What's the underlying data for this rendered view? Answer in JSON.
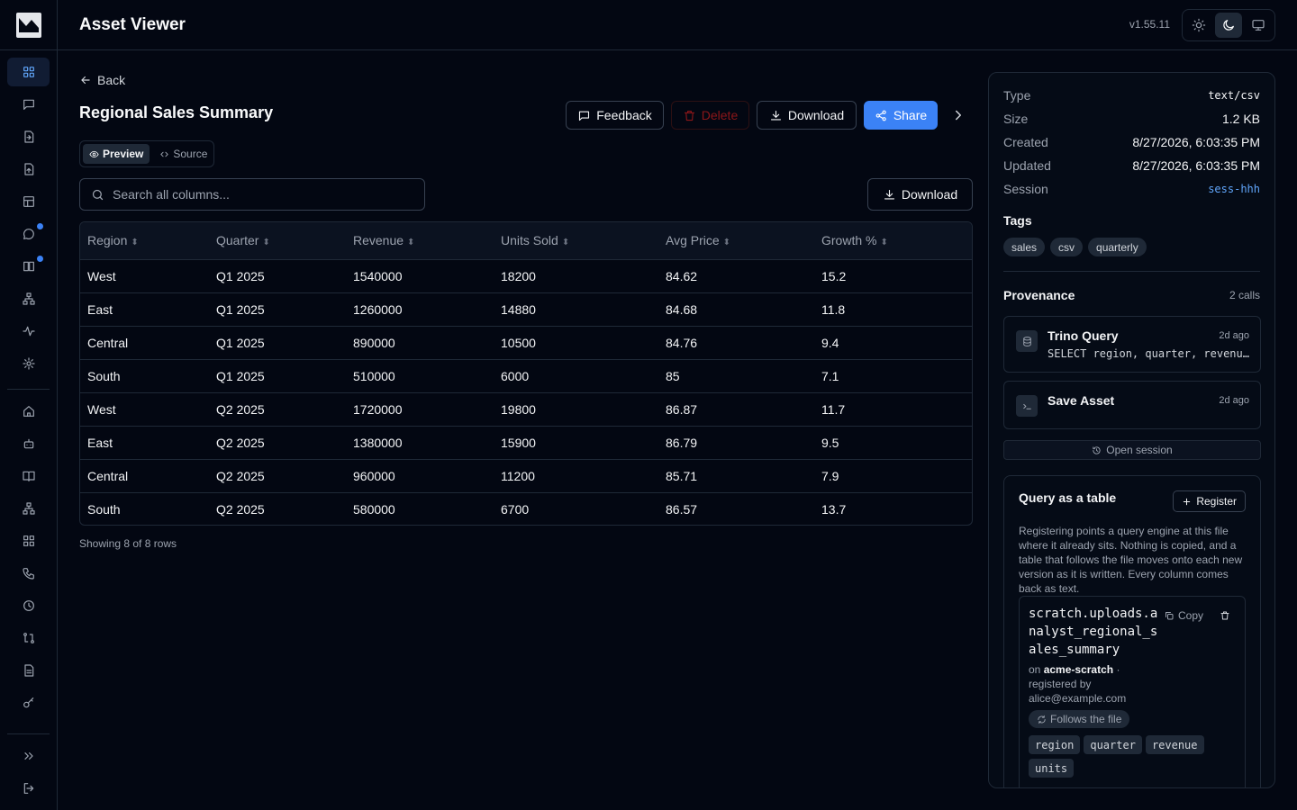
{
  "app": {
    "title": "Asset Viewer",
    "version": "v1.55.11"
  },
  "theme": {
    "options": [
      "light-icon",
      "dark-icon",
      "system-icon"
    ],
    "active": "dark"
  },
  "sidebar": {
    "items": [
      {
        "name": "grid-icon",
        "active": true,
        "dot": false
      },
      {
        "name": "chat-icon",
        "active": false,
        "dot": false
      },
      {
        "name": "file-import-icon",
        "active": false,
        "dot": false
      },
      {
        "name": "file-upload-icon",
        "active": false,
        "dot": false
      },
      {
        "name": "table-icon",
        "active": false,
        "dot": false
      },
      {
        "name": "message-icon",
        "active": false,
        "dot": true
      },
      {
        "name": "book-icon",
        "active": false,
        "dot": true
      },
      {
        "name": "network-icon",
        "active": false,
        "dot": false
      },
      {
        "name": "activity-icon",
        "active": false,
        "dot": false
      },
      {
        "name": "settings-icon",
        "active": false,
        "dot": false
      },
      {
        "name": "home-icon",
        "active": false,
        "dot": false
      },
      {
        "name": "bot-icon",
        "active": false,
        "dot": false
      },
      {
        "name": "book-open-icon",
        "active": false,
        "dot": false
      },
      {
        "name": "hierarchy-icon",
        "active": false,
        "dot": false
      },
      {
        "name": "apps-icon",
        "active": false,
        "dot": false
      },
      {
        "name": "phone-icon",
        "active": false,
        "dot": false
      },
      {
        "name": "clock-icon",
        "active": false,
        "dot": false
      },
      {
        "name": "compare-icon",
        "active": false,
        "dot": false
      },
      {
        "name": "document-icon",
        "active": false,
        "dot": false
      },
      {
        "name": "key-icon",
        "active": false,
        "dot": false
      }
    ],
    "expand_icon": "chevrons-right-icon",
    "logout_icon": "logout-icon"
  },
  "page": {
    "back_label": "Back",
    "title": "Regional Sales Summary",
    "actions": {
      "feedback": "Feedback",
      "delete": "Delete",
      "download": "Download",
      "share": "Share"
    },
    "tabs": {
      "preview": "Preview",
      "source": "Source"
    },
    "search": {
      "placeholder": "Search all columns..."
    },
    "table_download": "Download",
    "row_count": "Showing 8 of 8 rows"
  },
  "table": {
    "columns": [
      "Region",
      "Quarter",
      "Revenue",
      "Units Sold",
      "Avg Price",
      "Growth %"
    ],
    "rows": [
      [
        "West",
        "Q1 2025",
        "1540000",
        "18200",
        "84.62",
        "15.2"
      ],
      [
        "East",
        "Q1 2025",
        "1260000",
        "14880",
        "84.68",
        "11.8"
      ],
      [
        "Central",
        "Q1 2025",
        "890000",
        "10500",
        "84.76",
        "9.4"
      ],
      [
        "South",
        "Q1 2025",
        "510000",
        "6000",
        "85",
        "7.1"
      ],
      [
        "West",
        "Q2 2025",
        "1720000",
        "19800",
        "86.87",
        "11.7"
      ],
      [
        "East",
        "Q2 2025",
        "1380000",
        "15900",
        "86.79",
        "9.5"
      ],
      [
        "Central",
        "Q2 2025",
        "960000",
        "11200",
        "85.71",
        "7.9"
      ],
      [
        "South",
        "Q2 2025",
        "580000",
        "6700",
        "86.57",
        "13.7"
      ]
    ]
  },
  "panel": {
    "meta": [
      {
        "key": "Type",
        "value": "text/csv"
      },
      {
        "key": "Size",
        "value": "1.2 KB"
      },
      {
        "key": "Created",
        "value": "8/27/2026, 6:03:35 PM"
      },
      {
        "key": "Updated",
        "value": "8/27/2026, 6:03:35 PM"
      },
      {
        "key": "Session",
        "value": "sess-hhh"
      }
    ],
    "tags_title": "Tags",
    "tags": [
      "sales",
      "csv",
      "quarterly"
    ],
    "provenance_title": "Provenance",
    "provenance_count": "2 calls",
    "provenance": [
      {
        "name": "Trino Query",
        "time": "2d ago",
        "detail": "SELECT region, quarter, revenue, units_sold FROM sales"
      },
      {
        "name": "Save Asset",
        "time": "2d ago",
        "detail": ""
      }
    ],
    "open_session": "Open session",
    "query": {
      "title": "Query as a table",
      "register": "Register",
      "description": "Registering points a query engine at this file where it already sits. Nothing is copied, and a table that follows the file moves onto each new version as it is written. Every column comes back as text.",
      "table_name": "scratch.uploads.analyst_regional_sales_summary",
      "copy": "Copy",
      "on_label": "on",
      "catalog": "acme-scratch",
      "registered_by_label": "· registered by",
      "registered_by": "alice@example.com",
      "follows": "Follows the file",
      "columns": [
        "region",
        "quarter",
        "revenue",
        "units"
      ]
    }
  }
}
